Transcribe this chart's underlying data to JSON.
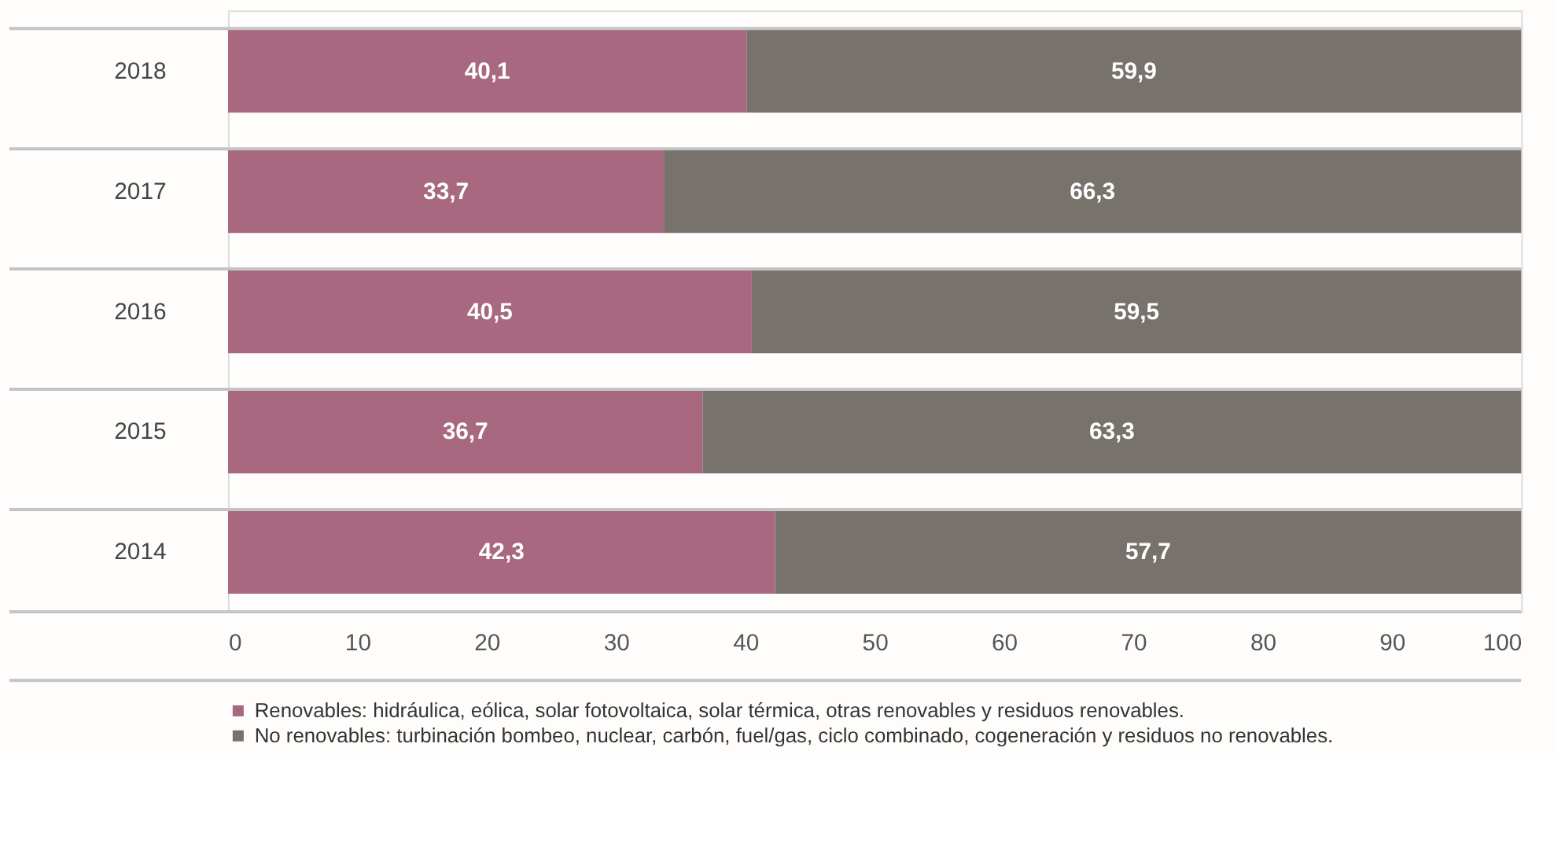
{
  "chart_data": {
    "type": "bar",
    "orientation": "horizontal",
    "stacked": true,
    "categories": [
      "2018",
      "2017",
      "2016",
      "2015",
      "2014"
    ],
    "series": [
      {
        "name": "Renovables: hidráulica, eólica, solar fotovoltaica, solar térmica, otras renovables y residuos renovables.",
        "color": "#a8687f",
        "values": [
          40.1,
          33.7,
          40.5,
          36.7,
          42.3
        ],
        "value_labels": [
          "40,1",
          "33,7",
          "40,5",
          "36,7",
          "42,3"
        ]
      },
      {
        "name": "No renovables: turbinación bombeo, nuclear, carbón, fuel/gas, ciclo combinado, cogeneración y residuos no renovables.",
        "color": "#78726d",
        "values": [
          59.9,
          66.3,
          59.5,
          63.3,
          57.7
        ],
        "value_labels": [
          "59,9",
          "66,3",
          "59,5",
          "63,3",
          "57,7"
        ]
      }
    ],
    "xlim": [
      0,
      100
    ],
    "xticks": [
      0,
      10,
      20,
      30,
      40,
      50,
      60,
      70,
      80,
      90,
      100
    ],
    "grid": "y",
    "legend": "bottom"
  }
}
